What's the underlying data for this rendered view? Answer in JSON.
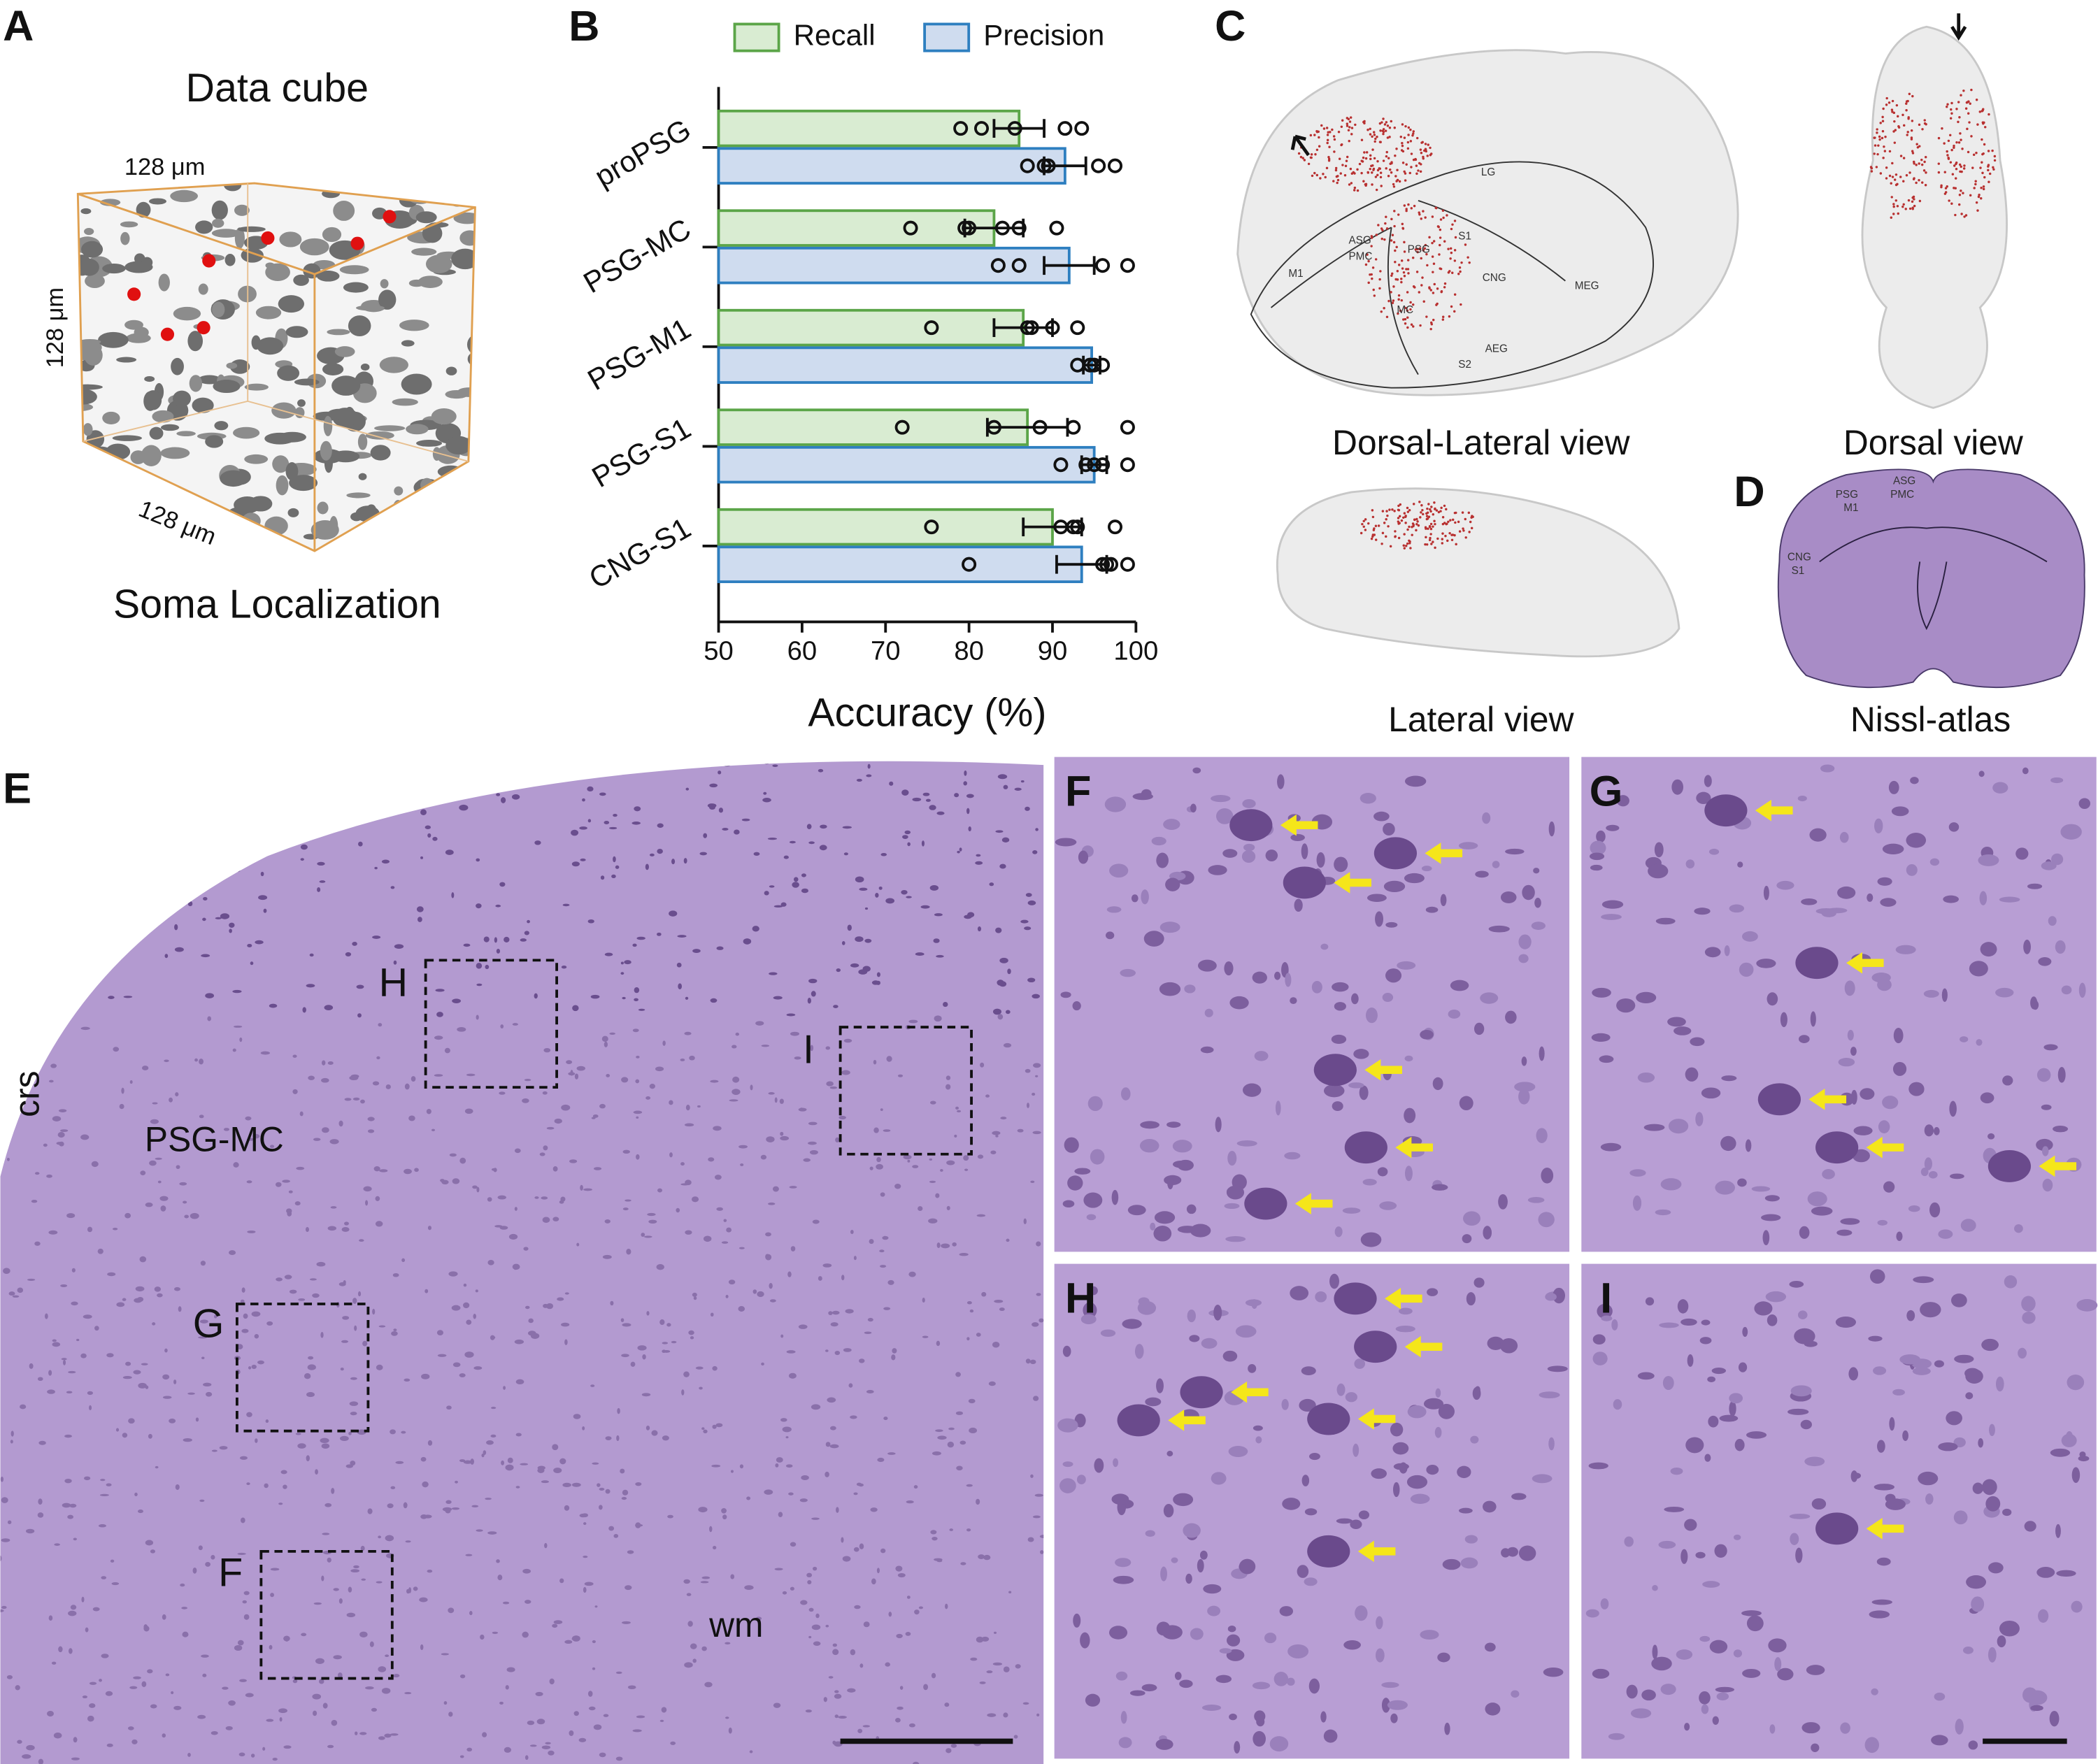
{
  "panels": {
    "A": {
      "label": "A",
      "title": "Data cube",
      "dims": [
        "128 μm",
        "128 μm",
        "128 μm"
      ],
      "caption": "Soma Localization"
    },
    "B": {
      "label": "B"
    },
    "C": {
      "label": "C",
      "views": [
        "Dorsal-Lateral view",
        "Dorsal view",
        "Lateral view"
      ],
      "regions": [
        "LG",
        "ASG",
        "PMC",
        "M1",
        "PSG",
        "S1",
        "CNG",
        "MEG",
        "AEG",
        "S2",
        "MC"
      ]
    },
    "D": {
      "label": "D",
      "caption": "Nissl-atlas",
      "regions": [
        "PSG",
        "M1",
        "ASG",
        "PMC",
        "CNG",
        "S1"
      ]
    },
    "E": {
      "label": "E",
      "annotations": [
        "crs",
        "PSG-MC",
        "wm"
      ],
      "boxes": [
        "H",
        "I",
        "G",
        "F"
      ]
    },
    "insets": [
      "F",
      "G",
      "H",
      "I"
    ]
  },
  "chart_data": {
    "type": "bar",
    "orientation": "horizontal",
    "categories": [
      "proPSG",
      "PSG-MC",
      "PSG-M1",
      "PSG-S1",
      "CNG-S1"
    ],
    "series": [
      {
        "name": "Recall",
        "color": "#d9ecd2",
        "edge": "#5ba548",
        "values": [
          86,
          83,
          86.5,
          87,
          90
        ],
        "errors": [
          3,
          3.5,
          3.5,
          4.8,
          3.5
        ],
        "points": [
          [
            79,
            81.5,
            85.5,
            91.5,
            93.5
          ],
          [
            73,
            79.5,
            80,
            84,
            86,
            90.5
          ],
          [
            75.5,
            87,
            87.5,
            90,
            93
          ],
          [
            72,
            83,
            88.5,
            92.5,
            99
          ],
          [
            75.5,
            91,
            92.5,
            93,
            97.5
          ]
        ]
      },
      {
        "name": "Precision",
        "color": "#cfdcef",
        "edge": "#2e7fc0",
        "values": [
          91.5,
          92,
          94.7,
          95,
          93.5
        ],
        "errors": [
          2.5,
          3,
          1,
          1.5,
          3
        ],
        "points": [
          [
            87,
            89,
            89.5,
            95.5,
            97.5
          ],
          [
            83.5,
            86,
            96,
            99
          ],
          [
            93,
            94.5,
            95,
            96
          ],
          [
            91,
            94,
            95,
            96,
            99
          ],
          [
            80,
            96,
            96.5,
            97,
            99
          ]
        ]
      }
    ],
    "xlabel": "Accuracy (%)",
    "xlim": [
      50,
      100
    ],
    "xticks": [
      50,
      60,
      70,
      80,
      90,
      100
    ],
    "legend": "top"
  }
}
